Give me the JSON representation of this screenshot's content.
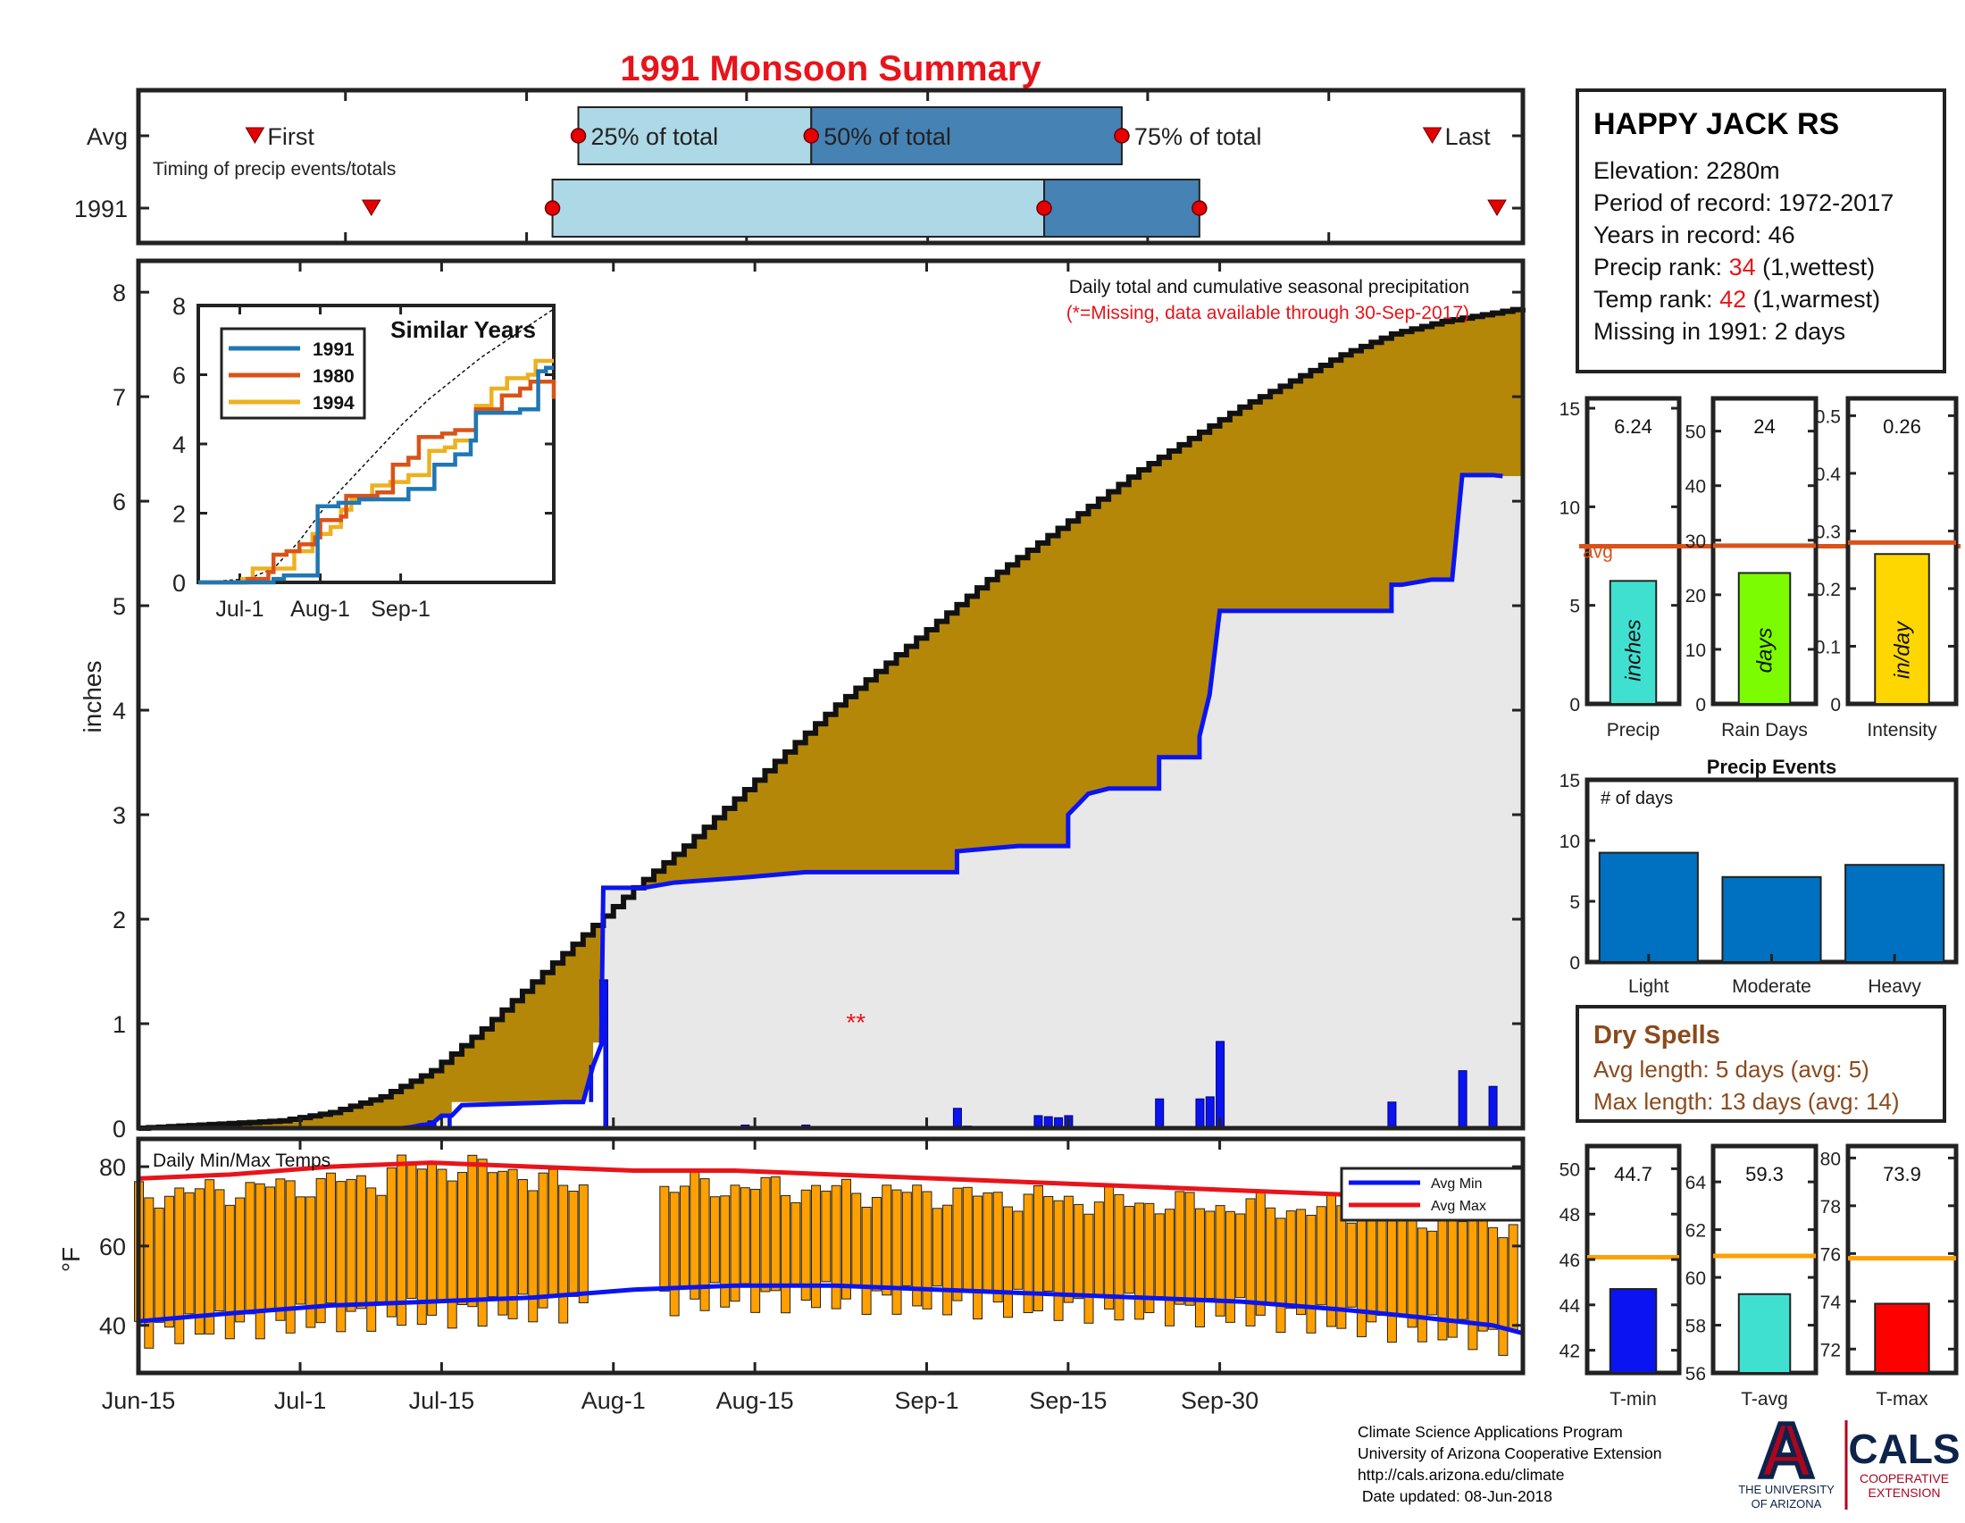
{
  "page": {
    "title": "1991 Monsoon Summary",
    "footer": {
      "line1": "Climate Science Applications Program",
      "line2": "University of Arizona Cooperative Extension",
      "line3": "http://cals.arizona.edu/climate",
      "line4": " Date updated: 08-Jun-2018"
    },
    "logo_ua": {
      "letter": "A",
      "text1": "THE UNIVERSITY",
      "text2": "OF ARIZONA"
    },
    "logo_cals": {
      "text": "CALS",
      "sub1": "COOPERATIVE",
      "sub2": "EXTENSION"
    },
    "colors": {
      "red": "#e8141b",
      "brown": "#8b4a1c",
      "gold": "#b58709",
      "blue": "#0a14f0",
      "navy": "#0c2c84"
    }
  },
  "station": {
    "name": "HAPPY JACK RS",
    "elevation": "Elevation: 2280m",
    "period": "Period of record: 1972-2017",
    "years": "Years in record: 46",
    "precip_rank_label": "Precip rank: ",
    "precip_rank_value": "34",
    "precip_rank_suffix": " (1,wettest)",
    "temp_rank_label": "Temp rank: ",
    "temp_rank_value": "42",
    "temp_rank_suffix": " (1,warmest)",
    "missing": "Missing in 1991: 2 days"
  },
  "dry_spells": {
    "title": "Dry Spells",
    "avg": "Avg length: 5 days (avg: 5)",
    "max": "Max length: 13 days (avg: 14)"
  },
  "chart_data": [
    {
      "id": "timing",
      "type": "bar",
      "row_labels": [
        "Avg",
        "1991"
      ],
      "subtitle": "Timing of precip events/totals",
      "labels": {
        "first": "First",
        "last": "Last",
        "p25": "25% of total",
        "p50": "50% of total",
        "p75": "75% of total"
      },
      "avg": {
        "first": "Jun-24",
        "p25": "Jul-19",
        "p50": "Aug-6",
        "p75": "Aug-30",
        "last": "Sep-23"
      },
      "y1991": {
        "first": "Jul-3",
        "p25": "Jul-17",
        "p50": "Aug-24",
        "p75": "Sep-5",
        "last": "Sep-28"
      },
      "colors": {
        "early": "#add8e6",
        "late": "#4682b4",
        "marker": "#e60000"
      }
    },
    {
      "id": "cumulative",
      "type": "area",
      "title": "Daily total and cumulative seasonal precipitation",
      "note": "(*=Missing, data available through 30-Sep-2017)",
      "ylabel": "inches",
      "ylim": [
        0,
        8.3
      ],
      "yticks": [
        0,
        1,
        2,
        3,
        4,
        5,
        6,
        7,
        8
      ],
      "xticks": [
        "Jun-15",
        "Jul-1",
        "Jul-15",
        "Aug-1",
        "Aug-15",
        "Sep-1",
        "Sep-15",
        "Sep-30"
      ],
      "missing_marker": "**",
      "avg_cumulative": [
        [
          1,
          0
        ],
        [
          15,
          0.07
        ],
        [
          20,
          0.15
        ],
        [
          25,
          0.3
        ],
        [
          30,
          0.55
        ],
        [
          35,
          0.95
        ],
        [
          40,
          1.4
        ],
        [
          45,
          1.85
        ],
        [
          50,
          2.3
        ],
        [
          55,
          2.7
        ],
        [
          60,
          3.15
        ],
        [
          65,
          3.6
        ],
        [
          70,
          4.05
        ],
        [
          75,
          4.45
        ],
        [
          80,
          4.85
        ],
        [
          85,
          5.25
        ],
        [
          90,
          5.6
        ],
        [
          95,
          5.95
        ],
        [
          100,
          6.3
        ],
        [
          105,
          6.6
        ],
        [
          110,
          6.9
        ],
        [
          115,
          7.15
        ],
        [
          120,
          7.4
        ],
        [
          125,
          7.6
        ],
        [
          130,
          7.72
        ],
        [
          135,
          7.8
        ],
        [
          138,
          7.85
        ]
      ],
      "cum_1991": [
        [
          1,
          0
        ],
        [
          27,
          0
        ],
        [
          28,
          0.01
        ],
        [
          29,
          0.03
        ],
        [
          30,
          0.04
        ],
        [
          31,
          0.12
        ],
        [
          32,
          0.12
        ],
        [
          33,
          0.22
        ],
        [
          43,
          0.25
        ],
        [
          45,
          0.25
        ],
        [
          46,
          0.6
        ],
        [
          46.8,
          0.8
        ],
        [
          47,
          2.3
        ],
        [
          51,
          2.3
        ],
        [
          54,
          2.35
        ],
        [
          61,
          2.4
        ],
        [
          67,
          2.45
        ],
        [
          82,
          2.45
        ],
        [
          82,
          2.65
        ],
        [
          88,
          2.7
        ],
        [
          93,
          2.7
        ],
        [
          93,
          3.0
        ],
        [
          94,
          3.1
        ],
        [
          95,
          3.2
        ],
        [
          97,
          3.25
        ],
        [
          102,
          3.25
        ],
        [
          102,
          3.55
        ],
        [
          106,
          3.55
        ],
        [
          106,
          3.75
        ],
        [
          107,
          4.15
        ],
        [
          108,
          4.95
        ],
        [
          109,
          4.95
        ],
        [
          125,
          4.95
        ],
        [
          125,
          5.2
        ],
        [
          126,
          5.2
        ],
        [
          129,
          5.25
        ],
        [
          131,
          5.25
        ],
        [
          132,
          6.25
        ],
        [
          135,
          6.25
        ],
        [
          135,
          6.25
        ],
        [
          136,
          6.24
        ]
      ],
      "daily": [
        [
          27,
          0.01
        ],
        [
          28,
          0.02
        ],
        [
          29,
          0.02
        ],
        [
          30,
          0.07
        ],
        [
          31,
          0.01
        ],
        [
          32,
          0.12
        ],
        [
          46,
          0.6
        ],
        [
          47,
          1.42
        ],
        [
          54,
          0.01
        ],
        [
          61,
          0.03
        ],
        [
          67,
          0.03
        ],
        [
          82,
          0.19
        ],
        [
          83,
          0.02
        ],
        [
          90,
          0.12
        ],
        [
          91,
          0.11
        ],
        [
          92,
          0.1
        ],
        [
          93,
          0.12
        ],
        [
          102,
          0.28
        ],
        [
          106,
          0.28
        ],
        [
          107,
          0.3
        ],
        [
          108,
          0.83
        ],
        [
          125,
          0.25
        ],
        [
          128,
          0.01
        ],
        [
          132,
          0.55
        ],
        [
          135,
          0.4
        ]
      ]
    },
    {
      "id": "similar_years",
      "type": "line",
      "title": "Similar Years",
      "ylim": [
        0,
        8
      ],
      "yticks": [
        0,
        2,
        4,
        6,
        8
      ],
      "xticks": [
        "Jul-1",
        "Aug-1",
        "Sep-1"
      ],
      "series": [
        {
          "name": "1991",
          "color": "#1f77b4",
          "points": [
            [
              1,
              0
            ],
            [
              28,
              0
            ],
            [
              30,
              0.1
            ],
            [
              34,
              0.2
            ],
            [
              46,
              0.2
            ],
            [
              47,
              2.2
            ],
            [
              55,
              2.3
            ],
            [
              63,
              2.4
            ],
            [
              70,
              2.4
            ],
            [
              82,
              2.7
            ],
            [
              92,
              3.4
            ],
            [
              100,
              3.7
            ],
            [
              106,
              4.1
            ],
            [
              108,
              4.9
            ],
            [
              125,
              5.0
            ],
            [
              132,
              6.1
            ],
            [
              135,
              6.2
            ],
            [
              138,
              6.2
            ]
          ]
        },
        {
          "name": "1980",
          "color": "#d95319",
          "points": [
            [
              1,
              0
            ],
            [
              20,
              0.1
            ],
            [
              28,
              0.3
            ],
            [
              30,
              0.8
            ],
            [
              35,
              0.9
            ],
            [
              40,
              1.1
            ],
            [
              46,
              1.3
            ],
            [
              48,
              1.8
            ],
            [
              56,
              1.9
            ],
            [
              58,
              2.5
            ],
            [
              70,
              2.6
            ],
            [
              76,
              3.4
            ],
            [
              82,
              3.6
            ],
            [
              86,
              4.2
            ],
            [
              95,
              4.3
            ],
            [
              100,
              4.4
            ],
            [
              108,
              5.0
            ],
            [
              118,
              5.4
            ],
            [
              125,
              5.6
            ],
            [
              129,
              5.8
            ],
            [
              138,
              5.3
            ]
          ]
        },
        {
          "name": "1994",
          "color": "#edb120",
          "points": [
            [
              1,
              0
            ],
            [
              18,
              0.1
            ],
            [
              22,
              0.4
            ],
            [
              30,
              0.4
            ],
            [
              38,
              0.9
            ],
            [
              45,
              1.4
            ],
            [
              52,
              1.6
            ],
            [
              56,
              2.1
            ],
            [
              60,
              2.4
            ],
            [
              68,
              2.8
            ],
            [
              75,
              2.9
            ],
            [
              82,
              3.1
            ],
            [
              90,
              3.8
            ],
            [
              96,
              3.9
            ],
            [
              100,
              4.1
            ],
            [
              108,
              5.1
            ],
            [
              114,
              5.6
            ],
            [
              120,
              5.9
            ],
            [
              128,
              6.0
            ],
            [
              131,
              6.4
            ],
            [
              138,
              6.4
            ]
          ]
        }
      ],
      "avg_line": [
        [
          1,
          0
        ],
        [
          20,
          0.1
        ],
        [
          30,
          0.4
        ],
        [
          40,
          1.2
        ],
        [
          50,
          2.2
        ],
        [
          60,
          3.0
        ],
        [
          70,
          3.8
        ],
        [
          80,
          4.6
        ],
        [
          90,
          5.3
        ],
        [
          100,
          5.9
        ],
        [
          110,
          6.5
        ],
        [
          120,
          7.0
        ],
        [
          130,
          7.5
        ],
        [
          138,
          7.9
        ]
      ]
    },
    {
      "id": "temps",
      "type": "bar",
      "title": "Daily Min/Max Temps",
      "ylabel": "°F",
      "ylim": [
        28,
        87
      ],
      "yticks": [
        40,
        60,
        80
      ],
      "legend": [
        "Avg Min",
        "Avg Max"
      ],
      "legend_colors": [
        "#0a14f0",
        "#e8141b"
      ],
      "bar_color": "#ffa000",
      "avg_min": [
        [
          1,
          41
        ],
        [
          10,
          43
        ],
        [
          20,
          45
        ],
        [
          30,
          46
        ],
        [
          40,
          47
        ],
        [
          50,
          49
        ],
        [
          60,
          50
        ],
        [
          70,
          50
        ],
        [
          80,
          49
        ],
        [
          90,
          48
        ],
        [
          100,
          47
        ],
        [
          110,
          46
        ],
        [
          120,
          44
        ],
        [
          128,
          42
        ],
        [
          135,
          40
        ],
        [
          138,
          38
        ]
      ],
      "avg_max": [
        [
          1,
          77
        ],
        [
          10,
          78
        ],
        [
          20,
          80
        ],
        [
          30,
          81
        ],
        [
          40,
          80
        ],
        [
          50,
          79
        ],
        [
          60,
          79
        ],
        [
          70,
          78
        ],
        [
          80,
          77
        ],
        [
          90,
          76
        ],
        [
          100,
          75
        ],
        [
          110,
          74
        ],
        [
          120,
          73
        ],
        [
          128,
          71
        ],
        [
          135,
          70
        ],
        [
          138,
          70
        ]
      ]
    },
    {
      "id": "precip_total",
      "type": "bar",
      "value": 6.24,
      "value_label": "6.24",
      "avg": 8.0,
      "avg_label": "avg",
      "inner_label": "inches",
      "xlabel": "Precip",
      "ylim": [
        0,
        15.5
      ],
      "yticks": [
        0,
        5,
        10,
        15
      ],
      "color": "#40e0d0"
    },
    {
      "id": "rain_days",
      "type": "bar",
      "value": 24,
      "value_label": "24",
      "avg": 29,
      "inner_label": "days",
      "xlabel": "Rain Days",
      "ylim": [
        0,
        56
      ],
      "yticks": [
        0,
        10,
        20,
        30,
        40,
        50
      ],
      "color": "#7cfc00"
    },
    {
      "id": "intensity",
      "type": "bar",
      "value": 0.26,
      "value_label": "0.26",
      "avg": 0.28,
      "inner_label": "in/day",
      "xlabel": "Intensity",
      "ylim": [
        0,
        0.53
      ],
      "yticks": [
        0,
        0.1,
        0.2,
        0.3,
        0.4,
        0.5
      ],
      "color": "#ffd700"
    },
    {
      "id": "precip_events",
      "type": "bar",
      "title": "Precip Events",
      "inner_label": "# of days",
      "categories": [
        "Light",
        "Moderate",
        "Heavy"
      ],
      "values": [
        9,
        7,
        8
      ],
      "ylim": [
        0,
        15
      ],
      "yticks": [
        0,
        5,
        10,
        15
      ],
      "color": "#0070c0"
    },
    {
      "id": "tmin",
      "type": "bar",
      "value": 44.7,
      "value_label": "44.7",
      "avg": 46.1,
      "xlabel": "T-min",
      "ylim": [
        41,
        51
      ],
      "yticks": [
        42,
        44,
        46,
        48,
        50
      ],
      "color": "#0a14f0"
    },
    {
      "id": "tavg",
      "type": "bar",
      "value": 59.3,
      "value_label": "59.3",
      "avg": 60.9,
      "xlabel": "T-avg",
      "ylim": [
        56,
        65.5
      ],
      "yticks": [
        56,
        58,
        60,
        62,
        64
      ],
      "color": "#40e0d0"
    },
    {
      "id": "tmax",
      "type": "bar",
      "value": 73.9,
      "value_label": "73.9",
      "avg": 75.8,
      "xlabel": "T-max",
      "ylim": [
        71,
        80.5
      ],
      "yticks": [
        72,
        74,
        76,
        78,
        80
      ],
      "color": "#ff0000"
    }
  ]
}
